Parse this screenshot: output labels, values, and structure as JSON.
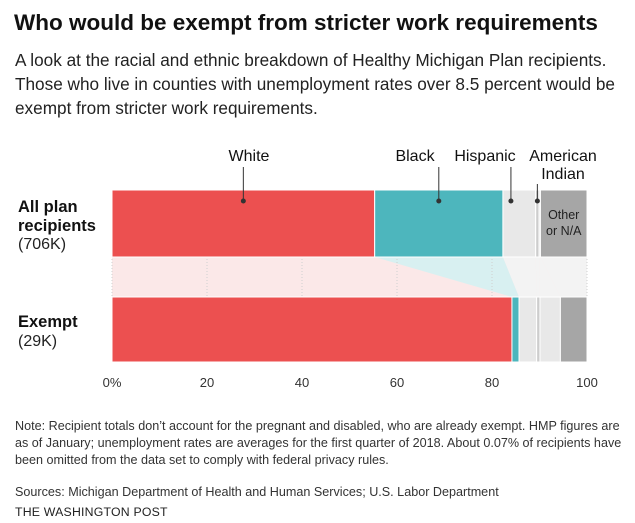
{
  "title": "Who would be exempt from stricter work requirements",
  "subtitle": "A look at the racial and ethnic breakdown of Healthy Michigan Plan recipients. Those who live in counties with unemployment rates over 8.5 percent would be exempt from stricter work requirements.",
  "note": "Note: Recipient totals don’t account for the pregnant and disabled, who are already exempt. HMP figures are as of January; unemployment rates are averages for the first quarter of 2018. About 0.07% of recipients have been omitted from the data set to comply with federal privacy rules.",
  "sources": "Sources: Michigan Department of Health and Human Services; U.S. Labor Department",
  "credit": "THE WASHINGTON POST",
  "chart_data": {
    "type": "bar",
    "stacked": true,
    "orientation": "horizontal",
    "xlim": [
      0,
      100
    ],
    "ticks": [
      0,
      20,
      40,
      60,
      80,
      100
    ],
    "tick_labels": [
      "0%",
      "20",
      "40",
      "60",
      "80",
      "100"
    ],
    "categories": [
      {
        "label_main": "All plan recipients",
        "label_count": "(706K)"
      },
      {
        "label_main": "Exempt",
        "label_count": "(29K)"
      }
    ],
    "series": [
      {
        "name": "White",
        "color": "#ec5050",
        "values": [
          55.3,
          84.2
        ]
      },
      {
        "name": "Black",
        "color": "#4db6bd",
        "values": [
          27.0,
          1.5
        ]
      },
      {
        "name": "Hispanic",
        "color": "#e8e8e8",
        "values": [
          6.9,
          3.7
        ]
      },
      {
        "name": "American Indian",
        "color": "#cdcdcd",
        "values": [
          0.7,
          0.7
        ]
      },
      {
        "name": "",
        "color": "#e8e8e8",
        "values": [
          0.3,
          4.3
        ]
      },
      {
        "name": "Other or N/A",
        "color": "#a6a6a6",
        "values": [
          9.8,
          5.6
        ]
      }
    ],
    "callouts": [
      {
        "text": "White",
        "series": 0
      },
      {
        "text": "Black",
        "series": 1
      },
      {
        "text": "Hispanic",
        "series": 2
      },
      {
        "text": "American Indian",
        "series": 3
      }
    ],
    "inbar_label": "Other or N/A"
  }
}
